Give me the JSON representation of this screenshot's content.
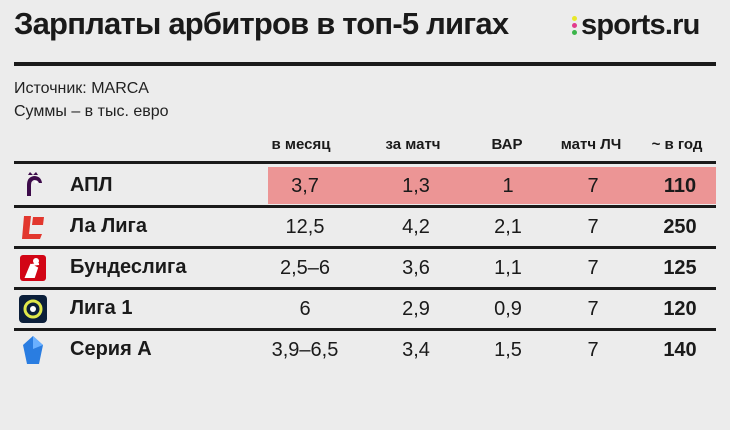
{
  "header": {
    "title": "Зарплаты арбитров в топ-5 лигах",
    "brand": "sports.ru",
    "brand_dot_colors": [
      "#e8e82a",
      "#e23b8c",
      "#3bb54a"
    ]
  },
  "meta": {
    "source": "Источник: MARCA",
    "units": "Суммы – в тыс. евро"
  },
  "chart_data": {
    "type": "table",
    "title": "Зарплаты арбитров в топ-5 лигах",
    "columns": [
      "в месяц",
      "за матч",
      "ВАР",
      "матч ЛЧ",
      "~ в год"
    ],
    "highlight_color": "#ec9595",
    "rows": [
      {
        "league": "АПЛ",
        "logo": "premier-league-lion-icon",
        "values": [
          "3,7",
          "1,3",
          "1",
          "7",
          "110"
        ],
        "highlighted": true
      },
      {
        "league": "Ла Лига",
        "logo": "laliga-logo-icon",
        "values": [
          "12,5",
          "4,2",
          "2,1",
          "7",
          "250"
        ],
        "highlighted": false
      },
      {
        "league": "Бундеслига",
        "logo": "bundesliga-logo-icon",
        "values": [
          "2,5–6",
          "3,6",
          "1,1",
          "7",
          "125"
        ],
        "highlighted": false
      },
      {
        "league": "Лига 1",
        "logo": "ligue1-logo-icon",
        "values": [
          "6",
          "2,9",
          "0,9",
          "7",
          "120"
        ],
        "highlighted": false
      },
      {
        "league": "Серия А",
        "logo": "serie-a-logo-icon",
        "values": [
          "3,9–6,5",
          "3,4",
          "1,5",
          "7",
          "140"
        ],
        "highlighted": false
      }
    ]
  }
}
